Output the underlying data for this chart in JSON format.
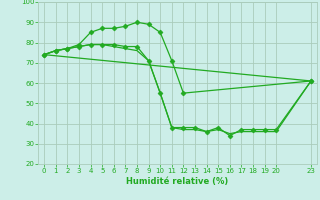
{
  "xlabel": "Humidité relative (%)",
  "background_color": "#cceee8",
  "grid_color": "#aaccbb",
  "line_color": "#22aa22",
  "xlim": [
    -0.5,
    23.5
  ],
  "ylim": [
    20,
    100
  ],
  "xtick_vals": [
    0,
    1,
    2,
    3,
    4,
    5,
    6,
    7,
    8,
    9,
    10,
    11,
    12,
    13,
    14,
    15,
    16,
    17,
    18,
    19,
    20,
    23
  ],
  "xtick_labels": [
    "0",
    "1",
    "2",
    "3",
    "4",
    "5",
    "6",
    "7",
    "8",
    "9",
    "10",
    "11",
    "12",
    "13",
    "14",
    "15",
    "16",
    "17",
    "18",
    "19",
    "20",
    "23"
  ],
  "yticks": [
    20,
    30,
    40,
    50,
    60,
    70,
    80,
    90,
    100
  ],
  "series": [
    {
      "x": [
        0,
        1,
        2,
        3,
        4,
        5,
        6,
        7,
        8,
        9,
        10,
        11,
        12,
        13,
        14,
        15,
        16,
        17,
        18,
        19,
        20,
        23
      ],
      "y": [
        74,
        76,
        77,
        78,
        79,
        79,
        79,
        78,
        78,
        71,
        55,
        38,
        38,
        38,
        36,
        38,
        34,
        37,
        37,
        37,
        37,
        61
      ],
      "marker": "D",
      "markersize": 2.5
    },
    {
      "x": [
        0,
        1,
        2,
        3,
        4,
        5,
        6,
        7,
        8,
        9,
        10,
        11,
        12,
        23
      ],
      "y": [
        74,
        76,
        77,
        79,
        85,
        87,
        87,
        88,
        90,
        89,
        85,
        71,
        55,
        61
      ],
      "marker": "D",
      "markersize": 2.5
    },
    {
      "x": [
        0,
        1,
        2,
        3,
        4,
        5,
        6,
        7,
        8,
        9,
        10,
        11,
        12,
        13,
        14,
        15,
        16,
        17,
        18,
        19,
        20,
        23
      ],
      "y": [
        74,
        76,
        77,
        78,
        79,
        79,
        78,
        77,
        76,
        71,
        55,
        38,
        37,
        37,
        36,
        37,
        35,
        36,
        36,
        36,
        36,
        61
      ],
      "marker": null,
      "markersize": 0
    },
    {
      "x": [
        0,
        23
      ],
      "y": [
        74,
        61
      ],
      "marker": null,
      "markersize": 0
    }
  ]
}
